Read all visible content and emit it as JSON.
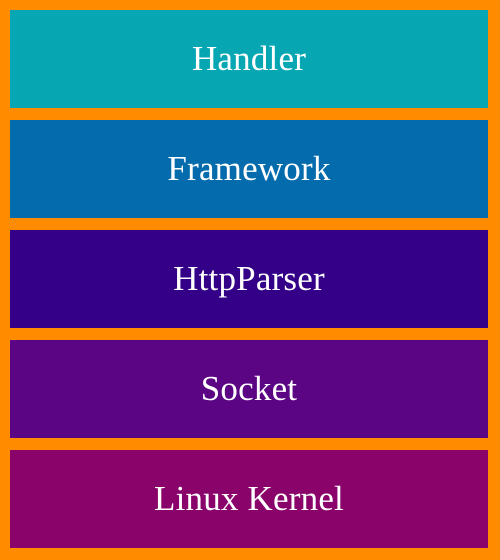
{
  "stack": {
    "layers": [
      {
        "label": "Handler",
        "color": "#06a7b3"
      },
      {
        "label": "Framework",
        "color": "#046bac"
      },
      {
        "label": "HttpParser",
        "color": "#330087"
      },
      {
        "label": "Socket",
        "color": "#5b0585"
      },
      {
        "label": "Linux Kernel",
        "color": "#89036a"
      }
    ],
    "border_color": "#ff8c00"
  }
}
